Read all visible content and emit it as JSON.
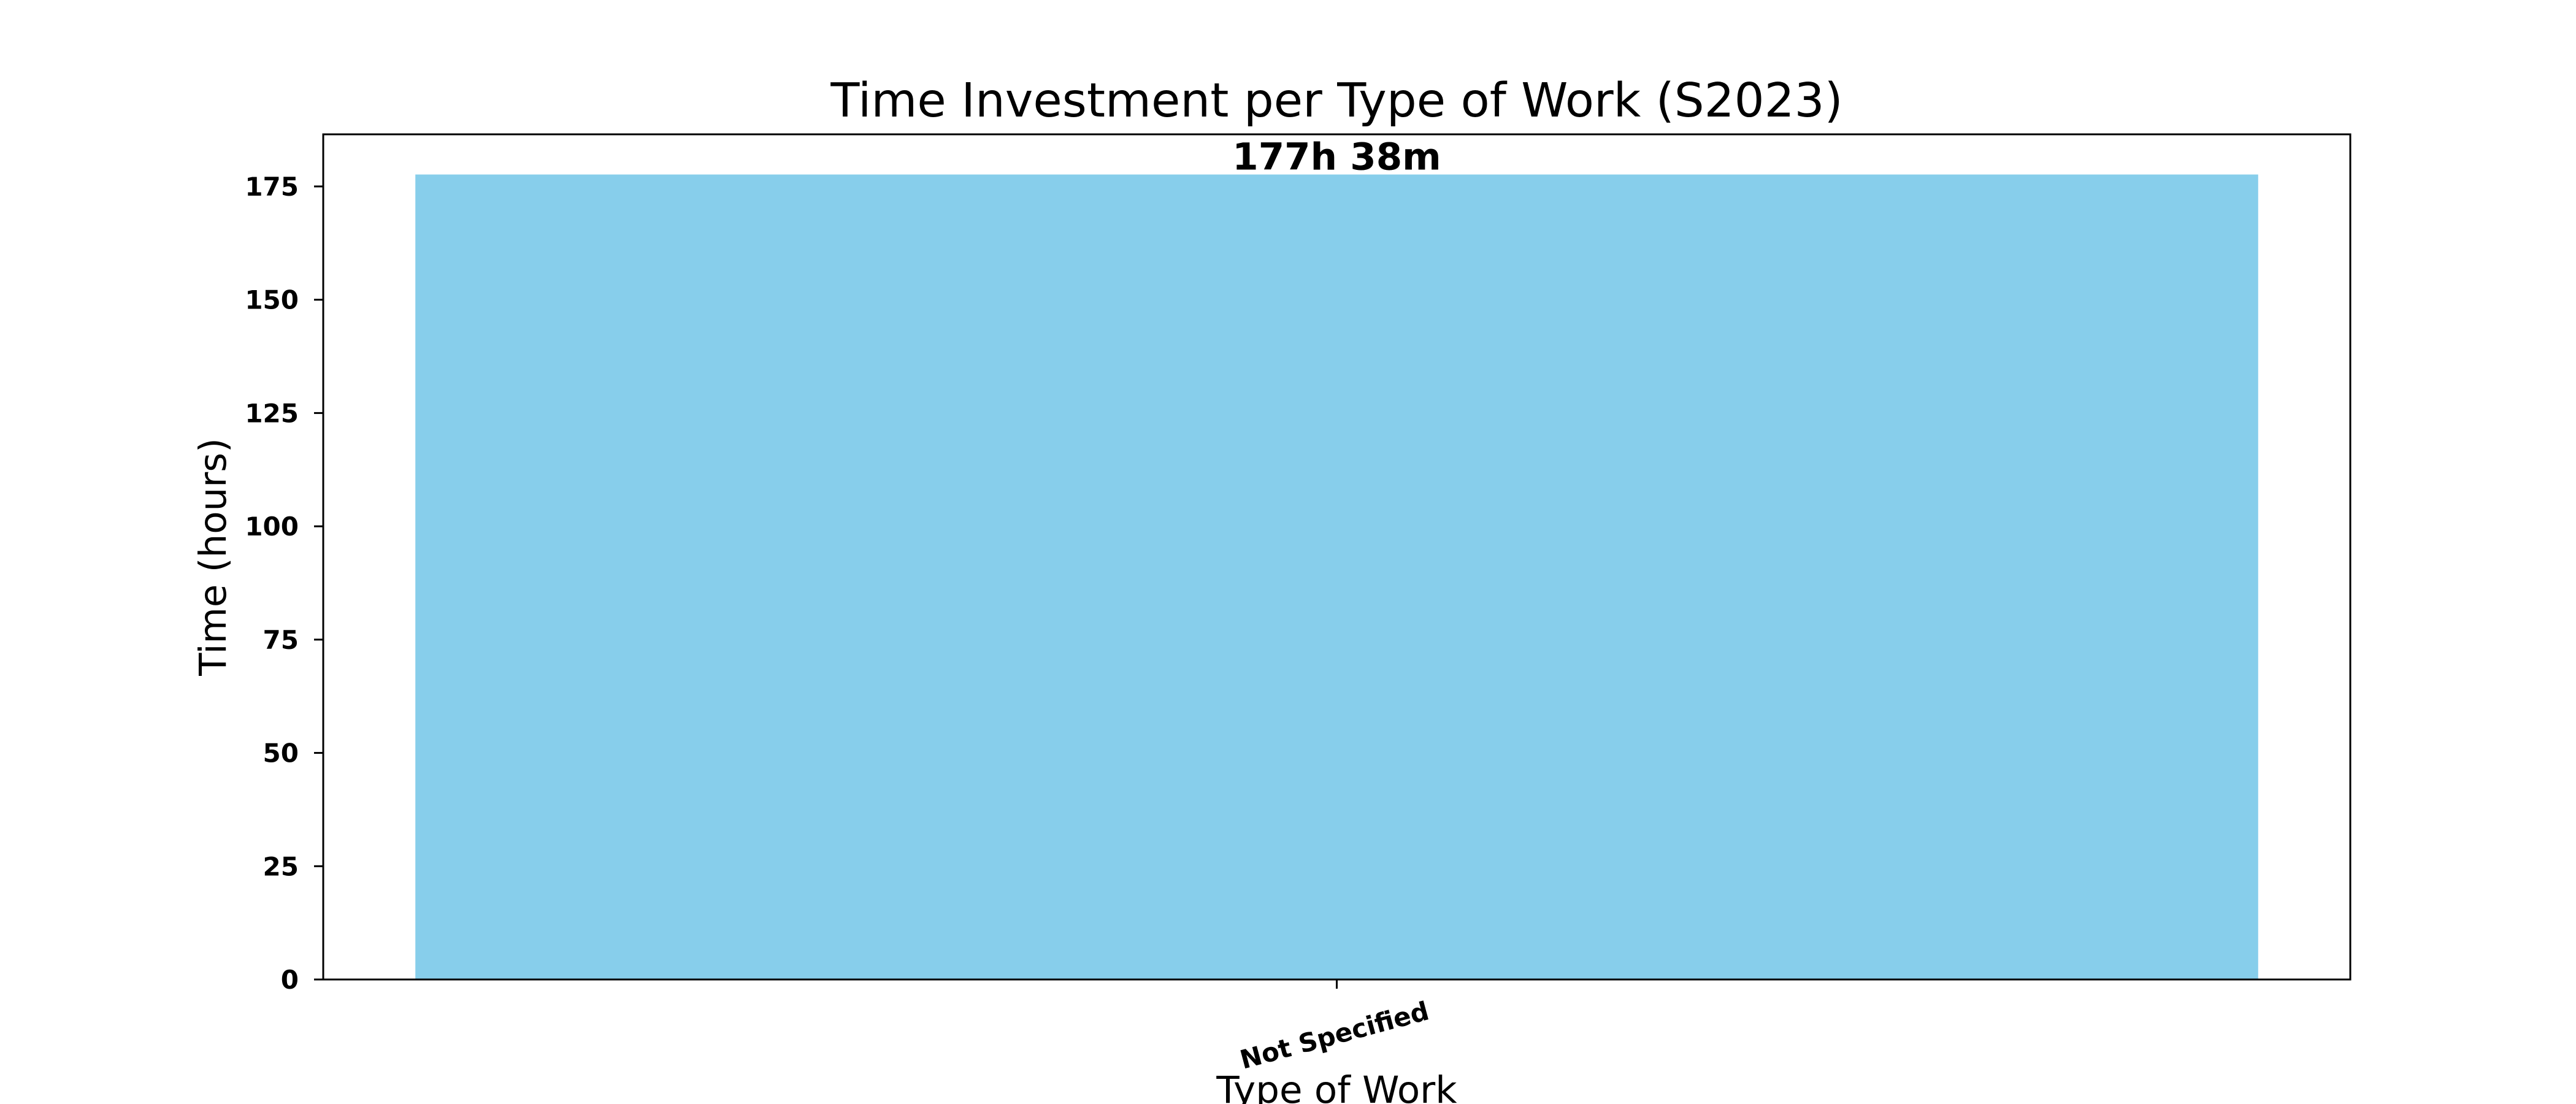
{
  "chart_data": {
    "type": "bar",
    "title": "Time Investment per Type of Work (S2023)",
    "xlabel": "Type of Work",
    "ylabel": "Time (hours)",
    "categories": [
      "Not Specified"
    ],
    "values": [
      177.633
    ],
    "data_labels": [
      "177h 38m"
    ],
    "ylim": [
      0,
      186.5
    ],
    "yticks": [
      0,
      25,
      50,
      75,
      100,
      125,
      150,
      175
    ],
    "bar_color": "#87CEEB",
    "grid": false,
    "legend": false
  }
}
